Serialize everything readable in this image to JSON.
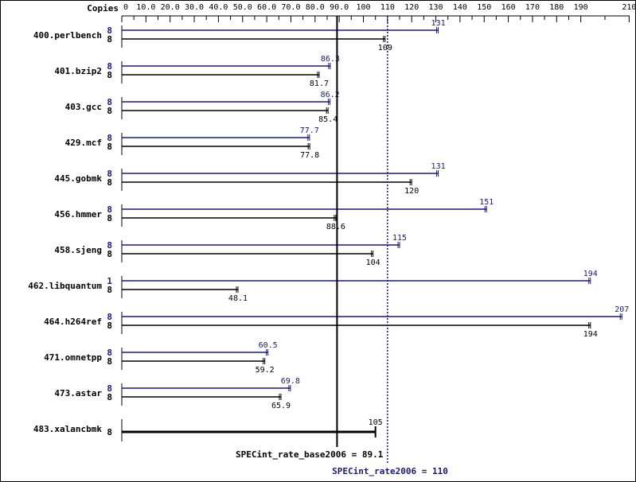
{
  "header": {
    "copies_label": "Copies"
  },
  "colors": {
    "peak": "#191970",
    "base": "#000000",
    "frame": "#000000"
  },
  "chart_data": {
    "type": "bar",
    "orientation": "horizontal",
    "xlim": [
      0,
      210
    ],
    "ticks": [
      "0",
      "10.0",
      "20.0",
      "30.0",
      "40.0",
      "50.0",
      "60.0",
      "70.0",
      "80.0",
      "90.0",
      "100",
      "110",
      "120",
      "130",
      "140",
      "150",
      "160",
      "170",
      "180",
      "190",
      "210"
    ],
    "tick_values": [
      0,
      10,
      20,
      30,
      40,
      50,
      60,
      70,
      80,
      90,
      100,
      110,
      120,
      130,
      140,
      150,
      160,
      170,
      180,
      190,
      210
    ],
    "benchmarks": [
      {
        "name": "400.perlbench",
        "peak_copies": "8",
        "peak": 131,
        "peak_label": "131",
        "base_copies": "8",
        "base": 109,
        "base_label": "109"
      },
      {
        "name": "401.bzip2",
        "peak_copies": "8",
        "peak": 86.3,
        "peak_label": "86.3",
        "base_copies": "8",
        "base": 81.7,
        "base_label": "81.7"
      },
      {
        "name": "403.gcc",
        "peak_copies": "8",
        "peak": 86.2,
        "peak_label": "86.2",
        "base_copies": "8",
        "base": 85.4,
        "base_label": "85.4"
      },
      {
        "name": "429.mcf",
        "peak_copies": "8",
        "peak": 77.7,
        "peak_label": "77.7",
        "base_copies": "8",
        "base": 77.8,
        "base_label": "77.8"
      },
      {
        "name": "445.gobmk",
        "peak_copies": "8",
        "peak": 131,
        "peak_label": "131",
        "base_copies": "8",
        "base": 120,
        "base_label": "120"
      },
      {
        "name": "456.hmmer",
        "peak_copies": "8",
        "peak": 151,
        "peak_label": "151",
        "base_copies": "8",
        "base": 88.6,
        "base_label": "88.6"
      },
      {
        "name": "458.sjeng",
        "peak_copies": "8",
        "peak": 115,
        "peak_label": "115",
        "base_copies": "8",
        "base": 104,
        "base_label": "104"
      },
      {
        "name": "462.libquantum",
        "peak_copies": "1",
        "peak": 194,
        "peak_label": "194",
        "base_copies": "8",
        "base": 48.1,
        "base_label": "48.1"
      },
      {
        "name": "464.h264ref",
        "peak_copies": "8",
        "peak": 207,
        "peak_label": "207",
        "base_copies": "8",
        "base": 194,
        "base_label": "194"
      },
      {
        "name": "471.omnetpp",
        "peak_copies": "8",
        "peak": 60.5,
        "peak_label": "60.5",
        "base_copies": "8",
        "base": 59.2,
        "base_label": "59.2"
      },
      {
        "name": "473.astar",
        "peak_copies": "8",
        "peak": 69.8,
        "peak_label": "69.8",
        "base_copies": "8",
        "base": 65.9,
        "base_label": "65.9"
      },
      {
        "name": "483.xalancbmk",
        "combined": true,
        "copies": "8",
        "value": 105,
        "label": "105"
      }
    ],
    "reference_lines": {
      "base": {
        "value": 89.1,
        "label": "SPECint_rate_base2006 = 89.1"
      },
      "peak": {
        "value": 110,
        "label": "SPECint_rate2006 = 110"
      }
    }
  }
}
